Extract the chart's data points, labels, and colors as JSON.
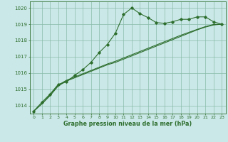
{
  "background_color": "#cbe8e8",
  "grid_color": "#88bbaa",
  "line_color": "#2d6e2d",
  "xlabel": "Graphe pression niveau de la mer (hPa)",
  "xlim": [
    -0.5,
    23.5
  ],
  "ylim": [
    1013.5,
    1020.4
  ],
  "yticks": [
    1014,
    1015,
    1016,
    1017,
    1018,
    1019,
    1020
  ],
  "xticks": [
    0,
    1,
    2,
    3,
    4,
    5,
    6,
    7,
    8,
    9,
    10,
    11,
    12,
    13,
    14,
    15,
    16,
    17,
    18,
    19,
    20,
    21,
    22,
    23
  ],
  "series1": [
    [
      0,
      1013.65
    ],
    [
      1,
      1014.2
    ],
    [
      2,
      1014.7
    ],
    [
      3,
      1015.3
    ],
    [
      4,
      1015.45
    ],
    [
      5,
      1015.85
    ],
    [
      6,
      1016.2
    ],
    [
      7,
      1016.65
    ],
    [
      8,
      1017.25
    ],
    [
      9,
      1017.75
    ],
    [
      10,
      1018.45
    ],
    [
      11,
      1019.6
    ],
    [
      12,
      1020.0
    ],
    [
      13,
      1019.65
    ],
    [
      14,
      1019.4
    ],
    [
      15,
      1019.1
    ],
    [
      16,
      1019.05
    ],
    [
      17,
      1019.15
    ],
    [
      18,
      1019.3
    ],
    [
      19,
      1019.3
    ],
    [
      20,
      1019.45
    ],
    [
      21,
      1019.45
    ],
    [
      22,
      1019.15
    ],
    [
      23,
      1019.0
    ]
  ],
  "series2": [
    [
      0,
      1013.65
    ],
    [
      1,
      1014.1
    ],
    [
      2,
      1014.6
    ],
    [
      3,
      1015.2
    ],
    [
      4,
      1015.5
    ],
    [
      5,
      1015.7
    ],
    [
      6,
      1015.9
    ],
    [
      7,
      1016.1
    ],
    [
      8,
      1016.3
    ],
    [
      9,
      1016.5
    ],
    [
      10,
      1016.65
    ],
    [
      11,
      1016.85
    ],
    [
      12,
      1017.05
    ],
    [
      13,
      1017.25
    ],
    [
      14,
      1017.45
    ],
    [
      15,
      1017.65
    ],
    [
      16,
      1017.85
    ],
    [
      17,
      1018.05
    ],
    [
      18,
      1018.25
    ],
    [
      19,
      1018.45
    ],
    [
      20,
      1018.65
    ],
    [
      21,
      1018.82
    ],
    [
      22,
      1018.95
    ],
    [
      23,
      1019.0
    ]
  ],
  "series3": [
    [
      0,
      1013.65
    ],
    [
      1,
      1014.1
    ],
    [
      2,
      1014.65
    ],
    [
      3,
      1015.25
    ],
    [
      4,
      1015.55
    ],
    [
      5,
      1015.75
    ],
    [
      6,
      1015.95
    ],
    [
      7,
      1016.15
    ],
    [
      8,
      1016.35
    ],
    [
      9,
      1016.55
    ],
    [
      10,
      1016.72
    ],
    [
      11,
      1016.92
    ],
    [
      12,
      1017.12
    ],
    [
      13,
      1017.32
    ],
    [
      14,
      1017.52
    ],
    [
      15,
      1017.72
    ],
    [
      16,
      1017.92
    ],
    [
      17,
      1018.12
    ],
    [
      18,
      1018.32
    ],
    [
      19,
      1018.5
    ],
    [
      20,
      1018.68
    ],
    [
      21,
      1018.85
    ],
    [
      22,
      1018.98
    ],
    [
      23,
      1019.0
    ]
  ]
}
